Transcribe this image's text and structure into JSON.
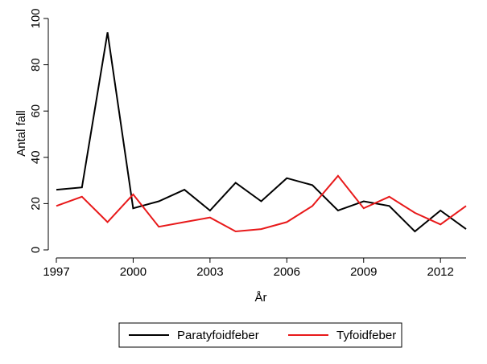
{
  "chart_data": {
    "type": "line",
    "title": "",
    "xlabel": "År",
    "ylabel": "Antal fall",
    "x": [
      1997,
      1998,
      1999,
      2000,
      2001,
      2002,
      2003,
      2004,
      2005,
      2006,
      2007,
      2008,
      2009,
      2010,
      2011,
      2012,
      2013
    ],
    "xlim": [
      1997,
      2013
    ],
    "ylim": [
      0,
      100
    ],
    "x_ticks": [
      1997,
      2000,
      2003,
      2006,
      2009,
      2012
    ],
    "y_ticks": [
      0,
      20,
      40,
      60,
      80,
      100
    ],
    "grid": false,
    "legend_position": "bottom",
    "series": [
      {
        "name": "Paratyfoidfeber",
        "color": "#000000",
        "values": [
          26,
          27,
          94,
          18,
          21,
          26,
          17,
          29,
          21,
          31,
          28,
          17,
          21,
          19,
          8,
          17,
          9
        ]
      },
      {
        "name": "Tyfoidfeber",
        "color": "#e8191a",
        "values": [
          19,
          23,
          12,
          24,
          10,
          12,
          14,
          8,
          9,
          12,
          19,
          32,
          18,
          23,
          16,
          11,
          19
        ]
      }
    ]
  }
}
